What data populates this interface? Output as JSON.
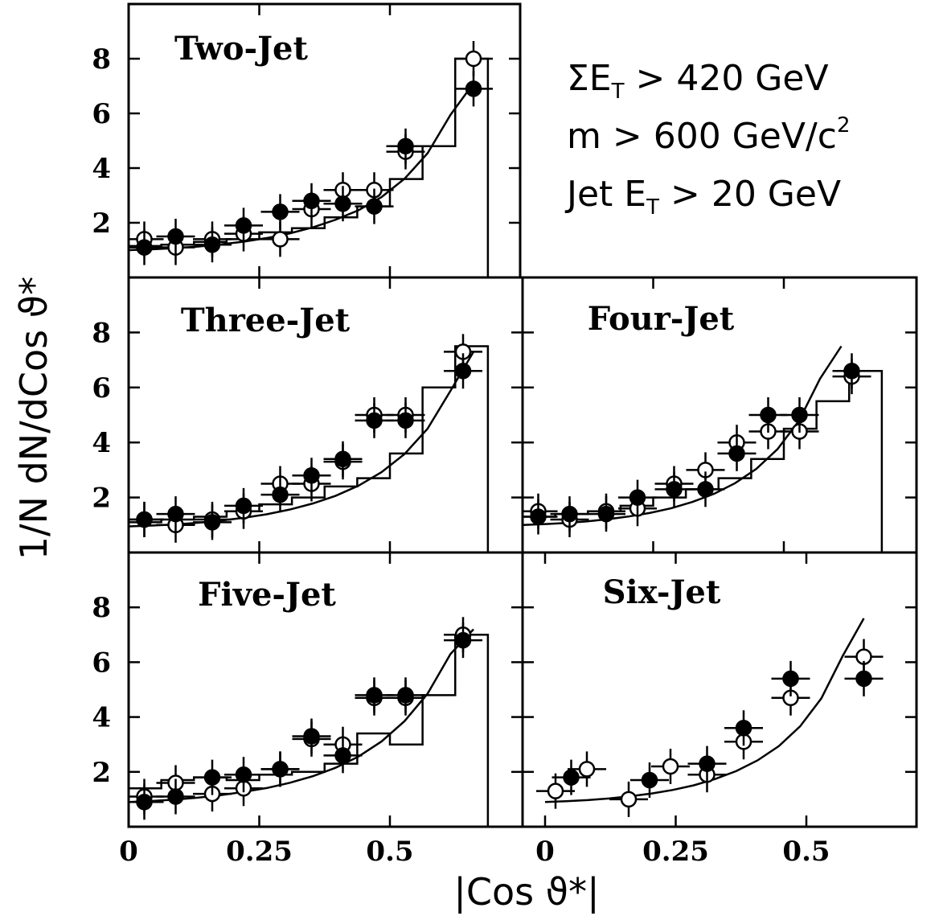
{
  "chart_data": {
    "type": "scatter",
    "ylabel": "1/N dN/dCos ϑ*",
    "xlabel": "|Cos ϑ*|",
    "cuts": {
      "line1": {
        "main": "ΣE",
        "sub": "T",
        "rest": " > 420 GeV"
      },
      "line2": {
        "main": "m > 600 GeV/c",
        "sup": "2"
      },
      "line3": {
        "main": "Jet E",
        "sub": "T",
        "rest": " > 20 GeV"
      }
    },
    "panels": [
      {
        "title": "Two-Jet",
        "xlim": [
          0,
          0.7
        ],
        "ylim": [
          0,
          10
        ],
        "xticks": [
          0,
          0.25,
          0.5
        ],
        "yticks": [
          2,
          4,
          6,
          8
        ],
        "curve": [
          1.0,
          1.03,
          1.07,
          1.13,
          1.21,
          1.31,
          1.44,
          1.61,
          1.83,
          2.11,
          2.46,
          2.94,
          3.61,
          4.54,
          5.95,
          7.1
        ],
        "histogram": {
          "edges": [
            0,
            0.0625,
            0.125,
            0.1875,
            0.25,
            0.3125,
            0.375,
            0.4375,
            0.5,
            0.5625,
            0.625,
            0.6875
          ],
          "values": [
            1.15,
            1.2,
            1.3,
            1.4,
            1.65,
            1.8,
            2.2,
            2.6,
            3.6,
            4.8,
            8.0
          ]
        },
        "open": {
          "x": [
            0.03,
            0.09,
            0.16,
            0.22,
            0.29,
            0.35,
            0.41,
            0.47,
            0.53,
            0.66
          ],
          "y": [
            1.4,
            1.1,
            1.4,
            1.6,
            1.4,
            2.5,
            3.2,
            3.2,
            4.6,
            8.0
          ]
        },
        "filled": {
          "x": [
            0.03,
            0.09,
            0.16,
            0.22,
            0.29,
            0.35,
            0.41,
            0.47,
            0.53,
            0.66
          ],
          "y": [
            1.1,
            1.5,
            1.2,
            1.9,
            2.4,
            2.8,
            2.7,
            2.6,
            4.8,
            6.9
          ]
        }
      },
      {
        "title": "Three-Jet",
        "xlim": [
          0,
          0.7
        ],
        "ylim": [
          0,
          10
        ],
        "xticks": [
          0,
          0.25,
          0.5
        ],
        "yticks": [
          2,
          4,
          6,
          8
        ],
        "curve": [
          0.95,
          0.98,
          1.02,
          1.08,
          1.16,
          1.26,
          1.39,
          1.56,
          1.78,
          2.06,
          2.43,
          2.92,
          3.58,
          4.5,
          5.88,
          7.3
        ],
        "histogram": {
          "edges": [
            0,
            0.0625,
            0.125,
            0.1875,
            0.25,
            0.3125,
            0.375,
            0.4375,
            0.5,
            0.5625,
            0.625,
            0.6875
          ],
          "values": [
            1.1,
            1.2,
            1.3,
            1.5,
            1.75,
            2.0,
            2.4,
            2.7,
            3.6,
            6.0,
            7.5
          ]
        },
        "open": {
          "x": [
            0.03,
            0.09,
            0.16,
            0.22,
            0.29,
            0.35,
            0.41,
            0.47,
            0.53,
            0.64
          ],
          "y": [
            1.2,
            1.0,
            1.2,
            1.5,
            2.5,
            2.5,
            3.3,
            5.0,
            5.0,
            7.3
          ]
        },
        "filled": {
          "x": [
            0.03,
            0.09,
            0.16,
            0.22,
            0.29,
            0.35,
            0.41,
            0.47,
            0.53,
            0.64
          ],
          "y": [
            1.2,
            1.4,
            1.1,
            1.7,
            2.1,
            2.8,
            3.4,
            4.8,
            4.8,
            6.6
          ]
        }
      },
      {
        "title": "Four-Jet",
        "xlim": [
          0,
          0.65
        ],
        "ylim": [
          0,
          10
        ],
        "xticks": [
          0.25,
          0.5
        ],
        "yticks": [
          2,
          4,
          6,
          8
        ],
        "curve": [
          1.0,
          1.03,
          1.07,
          1.13,
          1.21,
          1.31,
          1.44,
          1.61,
          1.84,
          2.13,
          2.52,
          3.04,
          3.76,
          4.78,
          6.32,
          7.5
        ],
        "histogram": {
          "edges": [
            0,
            0.0625,
            0.125,
            0.1875,
            0.25,
            0.3125,
            0.375,
            0.4375,
            0.5,
            0.5625,
            0.625,
            0.6875
          ],
          "values": [
            1.3,
            1.4,
            1.5,
            1.7,
            2.0,
            2.3,
            2.7,
            3.4,
            4.5,
            5.5,
            6.6
          ]
        },
        "open": {
          "x": [
            0.03,
            0.09,
            0.16,
            0.22,
            0.29,
            0.35,
            0.41,
            0.47,
            0.53,
            0.63
          ],
          "y": [
            1.5,
            1.2,
            1.5,
            1.6,
            2.5,
            3.0,
            4.0,
            4.4,
            4.4,
            6.4
          ]
        },
        "filled": {
          "x": [
            0.03,
            0.09,
            0.16,
            0.22,
            0.29,
            0.35,
            0.41,
            0.47,
            0.53,
            0.63
          ],
          "y": [
            1.3,
            1.4,
            1.4,
            2.0,
            2.3,
            2.3,
            3.6,
            5.0,
            5.0,
            6.6
          ]
        }
      },
      {
        "title": "Five-Jet",
        "xlim": [
          0,
          0.7
        ],
        "ylim": [
          0,
          10
        ],
        "xticks": [
          0,
          0.25,
          0.5
        ],
        "yticks": [
          2,
          4,
          6,
          8
        ],
        "curve": [
          0.9,
          0.94,
          0.99,
          1.06,
          1.15,
          1.27,
          1.41,
          1.6,
          1.84,
          2.15,
          2.56,
          3.11,
          3.85,
          4.85,
          6.3,
          7.2
        ],
        "histogram": {
          "edges": [
            0,
            0.0625,
            0.125,
            0.1875,
            0.25,
            0.3125,
            0.375,
            0.4375,
            0.5,
            0.5625,
            0.625,
            0.6875
          ],
          "values": [
            1.4,
            1.7,
            1.8,
            1.7,
            1.9,
            2.0,
            2.3,
            3.4,
            3.0,
            4.8,
            7.0
          ]
        },
        "open": {
          "x": [
            0.03,
            0.09,
            0.16,
            0.22,
            0.29,
            0.35,
            0.41,
            0.47,
            0.53,
            0.64
          ],
          "y": [
            1.1,
            1.6,
            1.2,
            1.4,
            2.1,
            3.2,
            3.0,
            4.7,
            4.7,
            7.0
          ]
        },
        "filled": {
          "x": [
            0.03,
            0.09,
            0.16,
            0.22,
            0.29,
            0.35,
            0.41,
            0.47,
            0.53,
            0.64
          ],
          "y": [
            0.9,
            1.1,
            1.8,
            1.9,
            2.1,
            3.3,
            2.6,
            4.8,
            4.8,
            6.8
          ]
        }
      },
      {
        "title": "Six-Jet",
        "xlim": [
          0,
          0.65
        ],
        "ylim": [
          0,
          10
        ],
        "xticks": [
          0,
          0.25,
          0.5
        ],
        "yticks": [
          2,
          4,
          6,
          8
        ],
        "curve": [
          0.9,
          0.93,
          0.97,
          1.03,
          1.11,
          1.21,
          1.34,
          1.51,
          1.74,
          2.03,
          2.42,
          2.94,
          3.66,
          4.68,
          6.22,
          7.6
        ],
        "histogram": {
          "edges": [],
          "values": []
        },
        "open": {
          "x": [
            0.02,
            0.08,
            0.16,
            0.24,
            0.31,
            0.38,
            0.47,
            0.61
          ],
          "y": [
            1.3,
            2.1,
            1.0,
            2.2,
            1.9,
            3.1,
            4.7,
            6.2
          ]
        },
        "filled": {
          "x": [
            0.05,
            0.2,
            0.31,
            0.38,
            0.47,
            0.61
          ],
          "y": [
            1.8,
            1.7,
            2.3,
            3.6,
            5.4,
            5.4
          ]
        }
      }
    ]
  }
}
